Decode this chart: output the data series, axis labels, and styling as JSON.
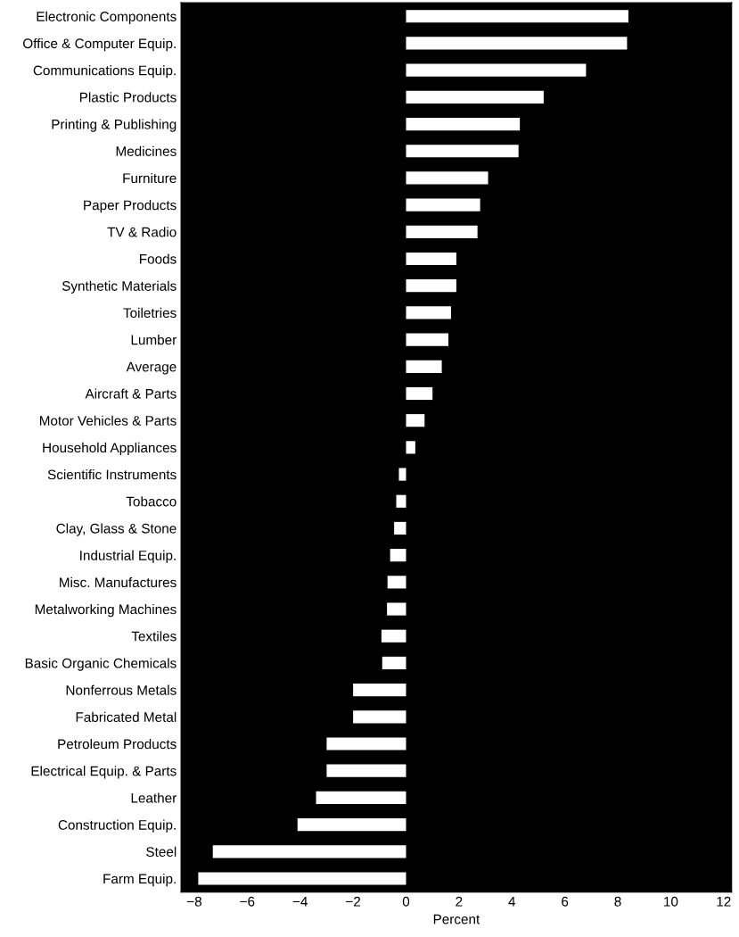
{
  "chart_data": {
    "type": "bar",
    "orientation": "horizontal",
    "xlabel": "Percent",
    "categories": [
      "Electronic Components",
      "Office & Computer Equip.",
      "Communications Equip.",
      "Plastic Products",
      "Printing & Publishing",
      "Medicines",
      "Furniture",
      "Paper Products",
      "TV & Radio",
      "Foods",
      "Synthetic Materials",
      "Toiletries",
      "Lumber",
      "Average",
      "Aircraft & Parts",
      "Motor Vehicles & Parts",
      "Household Appliances",
      "Scientific Instruments",
      "Tobacco",
      "Clay, Glass & Stone",
      "Industrial Equip.",
      "Misc. Manufactures",
      "Metalworking Machines",
      "Textiles",
      "Basic Organic Chemicals",
      "Nonferrous Metals",
      "Fabricated Metal",
      "Petroleum Products",
      "Electrical Equip. & Parts",
      "Leather",
      "Construction Equip.",
      "Steel",
      "Farm Equip."
    ],
    "values": [
      8.4,
      8.35,
      6.8,
      5.2,
      4.3,
      4.25,
      3.1,
      2.8,
      2.7,
      1.9,
      1.9,
      1.7,
      1.6,
      1.35,
      1.0,
      0.7,
      0.35,
      -0.27,
      -0.37,
      -0.45,
      -0.6,
      -0.7,
      -0.72,
      -0.93,
      -0.9,
      -2.0,
      -2.0,
      -3.0,
      -3.0,
      -3.4,
      -4.1,
      -7.3,
      -7.85
    ],
    "color": "#ffffff",
    "xlim": [
      -8.5,
      12.3
    ],
    "xticks": [
      -8,
      -6,
      -4,
      -2,
      0,
      2,
      4,
      6,
      8,
      10,
      12
    ],
    "grid": false
  }
}
